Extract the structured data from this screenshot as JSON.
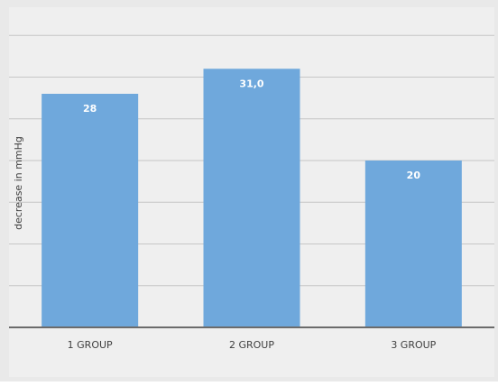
{
  "chart_data": {
    "type": "bar",
    "title": "",
    "xlabel": "",
    "ylabel": "decrease in mmHg",
    "categories": [
      "1 GROUP",
      "2 GROUP",
      "3 GROUP"
    ],
    "values": [
      28,
      31.0,
      20
    ],
    "data_labels": [
      "28",
      "31,0",
      "20"
    ],
    "ylim": [
      0,
      35
    ],
    "gridlines": [
      5,
      10,
      15,
      20,
      25,
      30,
      35
    ],
    "grid": true,
    "y_tick_labels_shown": false,
    "legend": "none",
    "colors": {
      "bar": "#6fa8dc",
      "plot_background": "#efefef",
      "gridline": "#c6c6c6",
      "axis": "#6b6b6b",
      "label_text": "#ffffff",
      "tick_text": "#404040"
    }
  }
}
